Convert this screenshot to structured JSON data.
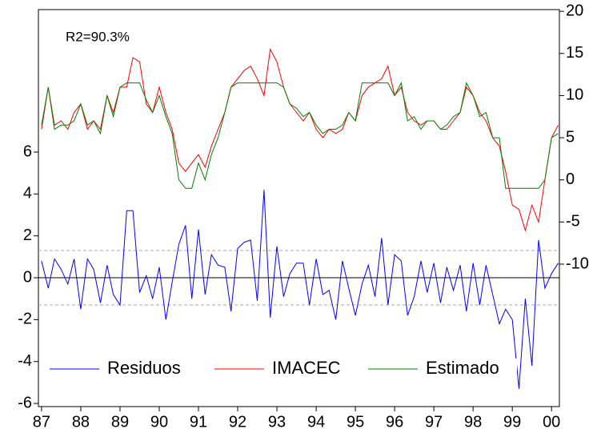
{
  "chart_data": {
    "type": "line",
    "annotation": "R2=90.3%",
    "x": [
      1987,
      1987.17,
      1987.33,
      1987.5,
      1987.67,
      1987.83,
      1988,
      1988.17,
      1988.33,
      1988.5,
      1988.67,
      1988.83,
      1989,
      1989.17,
      1989.33,
      1989.5,
      1989.67,
      1989.83,
      1990,
      1990.17,
      1990.33,
      1990.5,
      1990.67,
      1990.83,
      1991,
      1991.17,
      1991.33,
      1991.5,
      1991.67,
      1991.83,
      1992,
      1992.17,
      1992.33,
      1992.5,
      1992.67,
      1992.83,
      1993,
      1993.17,
      1993.33,
      1993.5,
      1993.67,
      1993.83,
      1994,
      1994.17,
      1994.33,
      1994.5,
      1994.67,
      1994.83,
      1995,
      1995.17,
      1995.33,
      1995.5,
      1995.67,
      1995.83,
      1996,
      1996.17,
      1996.33,
      1996.5,
      1996.67,
      1996.83,
      1997,
      1997.17,
      1997.33,
      1997.5,
      1997.67,
      1997.83,
      1998,
      1998.17,
      1998.33,
      1998.5,
      1998.67,
      1998.83,
      1999,
      1999.17,
      1999.33,
      1999.5,
      1999.67,
      1999.83,
      2000,
      2000.17
    ],
    "series": [
      {
        "name": "Residuos",
        "color": "#0000ff",
        "axis": "y",
        "values": [
          0.8,
          -0.5,
          0.9,
          0.4,
          -0.3,
          0.9,
          -1.5,
          0.9,
          0.4,
          -1.2,
          0.6,
          -0.8,
          -1.3,
          3.2,
          3.2,
          -0.7,
          0.1,
          -1.0,
          0.5,
          -2.0,
          -0.2,
          1.6,
          2.5,
          -1.0,
          2.3,
          -0.8,
          1.1,
          0.6,
          0.5,
          -1.6,
          1.4,
          1.7,
          1.8,
          -1.1,
          4.2,
          -1.9,
          1.5,
          -0.9,
          0.2,
          0.7,
          0.7,
          -1.3,
          0.9,
          -0.8,
          -0.6,
          -2.0,
          0.8,
          -0.5,
          -1.8,
          -0.3,
          0.6,
          -0.9,
          1.9,
          -1.3,
          1.1,
          0.8,
          -1.8,
          -0.9,
          0.8,
          -0.7,
          0.7,
          -1.2,
          0.5,
          -0.6,
          0.6,
          -1.6,
          0.7,
          -1.3,
          0.6,
          -0.8,
          -2.2,
          -1.5,
          -2.0,
          -5.3,
          -1.0,
          -4.2,
          1.8,
          -0.5,
          0.2,
          0.7
        ]
      },
      {
        "name": "IMACEC",
        "color": "#ff0000",
        "axis": "y2",
        "values": [
          6,
          11,
          6.5,
          7,
          6,
          8,
          9,
          6,
          7,
          6,
          10,
          8,
          11,
          11,
          14.5,
          14,
          9,
          8,
          11,
          8,
          6,
          2,
          1,
          2,
          3,
          1.5,
          4,
          6,
          8,
          11,
          12,
          13,
          13.5,
          12,
          10,
          15.5,
          14,
          11,
          9,
          8,
          7,
          8,
          6,
          5,
          6,
          5.5,
          6,
          8,
          7,
          10,
          11,
          11.5,
          12,
          13.5,
          10,
          11,
          8,
          7,
          6.5,
          7,
          7,
          6,
          6,
          7,
          8,
          11,
          10,
          8,
          7,
          5,
          4,
          1,
          -3,
          -3.5,
          -6,
          -3,
          -5,
          0,
          5,
          6.5
        ]
      },
      {
        "name": "Estimado",
        "color": "#008000",
        "axis": "y2",
        "values": [
          6.5,
          11,
          6,
          6.5,
          6.5,
          7,
          9,
          6.5,
          7,
          5.5,
          10,
          7.5,
          11,
          11.5,
          11.5,
          11.5,
          9.5,
          8,
          10,
          7.5,
          5.5,
          0,
          -1,
          -1,
          2,
          0,
          3,
          5,
          8,
          11,
          11.5,
          11.5,
          11.5,
          11.5,
          11.5,
          11.5,
          11.5,
          11,
          9,
          8.5,
          7.5,
          8,
          6.5,
          5.5,
          6,
          6,
          6.5,
          8,
          7,
          11.5,
          11.5,
          11.5,
          11.5,
          11.5,
          10,
          11.5,
          7,
          7.5,
          6,
          7,
          7,
          6,
          6.5,
          7.5,
          8,
          11.5,
          10,
          7.5,
          8,
          5,
          5,
          -1,
          -1,
          -1,
          -1,
          -1,
          -1,
          0,
          5,
          5.5
        ]
      }
    ],
    "xlim": [
      1986.92,
      2000.2
    ],
    "xticks": [
      {
        "value": 1987,
        "label": "87"
      },
      {
        "value": 1988,
        "label": "88"
      },
      {
        "value": 1989,
        "label": "89"
      },
      {
        "value": 1990,
        "label": "90"
      },
      {
        "value": 1991,
        "label": "91"
      },
      {
        "value": 1992,
        "label": "92"
      },
      {
        "value": 1993,
        "label": "93"
      },
      {
        "value": 1994,
        "label": "94"
      },
      {
        "value": 1995,
        "label": "95"
      },
      {
        "value": 1996,
        "label": "96"
      },
      {
        "value": 1997,
        "label": "97"
      },
      {
        "value": 1998,
        "label": "98"
      },
      {
        "value": 1999,
        "label": "99"
      },
      {
        "value": 2000,
        "label": "00"
      }
    ],
    "ylim": [
      -6.15,
      12.8
    ],
    "yticks": [
      -6,
      -4,
      -2,
      0,
      2,
      4,
      6
    ],
    "y2lim": [
      -26.9,
      20.2
    ],
    "y2ticks": [
      -10,
      -5,
      0,
      5,
      10,
      15,
      20
    ],
    "reference_lines": [
      -1.3,
      0,
      1.3
    ],
    "legend": "bottom"
  }
}
